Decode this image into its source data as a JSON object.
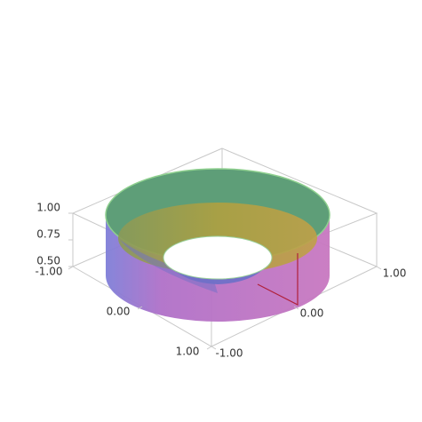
{
  "chart_data": {
    "type": "surface3d",
    "xlim": [
      -1,
      1
    ],
    "xticks": [
      {
        "value": -1,
        "label": "-1.00"
      },
      {
        "value": 0,
        "label": "0.00"
      },
      {
        "value": 1,
        "label": "1.00"
      }
    ],
    "ylim": [
      -1,
      1
    ],
    "yticks": [
      {
        "value": -1,
        "label": "-1.00"
      },
      {
        "value": 0,
        "label": "0.00"
      },
      {
        "value": 1,
        "label": "1.00"
      }
    ],
    "zlim": [
      0.5,
      1
    ],
    "zticks": [
      {
        "value": 0.5,
        "label": "0.50"
      },
      {
        "value": 0.75,
        "label": "0.75"
      },
      {
        "value": 1,
        "label": "1.00"
      }
    ]
  }
}
